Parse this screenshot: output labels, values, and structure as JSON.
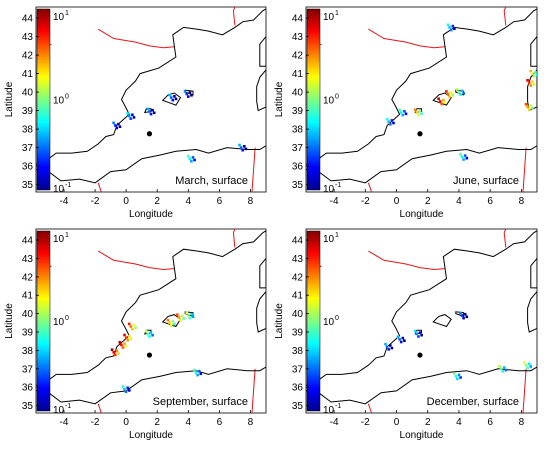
{
  "chart_data": [
    {
      "type": "heatmap",
      "title": "March, surface",
      "xlabel": "Longitude",
      "ylabel": "Latitude",
      "xlim": [
        -5.8,
        9
      ],
      "ylim": [
        34.6,
        44.6
      ],
      "xticks": [
        -4,
        -2,
        0,
        2,
        4,
        6,
        8
      ],
      "yticks": [
        35,
        36,
        37,
        38,
        39,
        40,
        41,
        42,
        43,
        44
      ],
      "colorbar": {
        "scale": "log",
        "range": [
          0.1,
          10
        ],
        "labels": [
          "10",
          "10",
          "10"
        ],
        "exponents": [
          "-1",
          "0",
          "1"
        ]
      },
      "marker": {
        "lon": 1.5,
        "lat": 37.75
      },
      "hotspots": [
        {
          "lon": 0.3,
          "lat": 38.7,
          "level": 0.35
        },
        {
          "lon": -0.6,
          "lat": 38.2,
          "level": 0.25
        },
        {
          "lon": 1.6,
          "lat": 38.95,
          "level": 0.3
        },
        {
          "lon": 3.0,
          "lat": 39.7,
          "level": 0.3
        },
        {
          "lon": 4.0,
          "lat": 39.9,
          "level": 0.25
        },
        {
          "lon": 4.2,
          "lat": 36.4,
          "level": 0.45
        },
        {
          "lon": 7.5,
          "lat": 37.0,
          "level": 0.3
        }
      ]
    },
    {
      "type": "heatmap",
      "title": "June, surface",
      "xlabel": "Longitude",
      "ylabel": "Latitude",
      "xlim": [
        -5.8,
        9
      ],
      "ylim": [
        34.6,
        44.6
      ],
      "xticks": [
        -4,
        -2,
        0,
        2,
        4,
        6,
        8
      ],
      "yticks": [
        35,
        36,
        37,
        38,
        39,
        40,
        41,
        42,
        43,
        44
      ],
      "colorbar": {
        "scale": "log",
        "range": [
          0.1,
          10
        ],
        "labels": [
          "10",
          "10",
          "10"
        ],
        "exponents": [
          "-1",
          "0",
          "1"
        ]
      },
      "marker": {
        "lon": 1.5,
        "lat": 37.75
      },
      "hotspots": [
        {
          "lon": -0.4,
          "lat": 38.4,
          "level": 0.4
        },
        {
          "lon": 0.4,
          "lat": 38.9,
          "level": 0.45
        },
        {
          "lon": 1.4,
          "lat": 38.9,
          "level": 0.75
        },
        {
          "lon": 2.9,
          "lat": 39.5,
          "level": 0.95
        },
        {
          "lon": 3.4,
          "lat": 39.9,
          "level": 0.85
        },
        {
          "lon": 4.1,
          "lat": 40.0,
          "level": 0.55
        },
        {
          "lon": 8.6,
          "lat": 40.5,
          "level": 0.9
        },
        {
          "lon": 8.5,
          "lat": 39.2,
          "level": 0.8
        },
        {
          "lon": 8.8,
          "lat": 41.0,
          "level": 0.7
        },
        {
          "lon": 3.5,
          "lat": 43.5,
          "level": 0.4
        },
        {
          "lon": 4.3,
          "lat": 36.5,
          "level": 0.45
        }
      ]
    },
    {
      "type": "heatmap",
      "title": "September, surface",
      "xlabel": "Longitude",
      "ylabel": "Latitude",
      "xlim": [
        -5.8,
        9
      ],
      "ylim": [
        34.6,
        44.6
      ],
      "xticks": [
        -4,
        -2,
        0,
        2,
        4,
        6,
        8
      ],
      "yticks": [
        35,
        36,
        37,
        38,
        39,
        40,
        41,
        42,
        43,
        44
      ],
      "colorbar": {
        "scale": "log",
        "range": [
          0.1,
          10
        ],
        "labels": [
          "10",
          "10",
          "10"
        ],
        "exponents": [
          "-1",
          "0",
          "1"
        ]
      },
      "marker": {
        "lon": 1.5,
        "lat": 37.75
      },
      "hotspots": [
        {
          "lon": -0.7,
          "lat": 37.9,
          "level": 0.98
        },
        {
          "lon": -0.2,
          "lat": 38.3,
          "level": 0.95
        },
        {
          "lon": 0.1,
          "lat": 38.7,
          "level": 0.9
        },
        {
          "lon": 0.4,
          "lat": 39.3,
          "level": 0.85
        },
        {
          "lon": 1.5,
          "lat": 38.9,
          "level": 0.55
        },
        {
          "lon": 2.9,
          "lat": 39.5,
          "level": 0.75
        },
        {
          "lon": 3.5,
          "lat": 39.8,
          "level": 0.8
        },
        {
          "lon": 4.1,
          "lat": 39.9,
          "level": 0.6
        },
        {
          "lon": 0.0,
          "lat": 35.9,
          "level": 0.4
        },
        {
          "lon": 4.6,
          "lat": 36.8,
          "level": 0.45
        }
      ]
    },
    {
      "type": "heatmap",
      "title": "December, surface",
      "xlabel": "Longitude",
      "ylabel": "Latitude",
      "xlim": [
        -5.8,
        9
      ],
      "ylim": [
        34.6,
        44.6
      ],
      "xticks": [
        -4,
        -2,
        0,
        2,
        4,
        6,
        8
      ],
      "yticks": [
        35,
        36,
        37,
        38,
        39,
        40,
        41,
        42,
        43,
        44
      ],
      "colorbar": {
        "scale": "log",
        "range": [
          0.1,
          10
        ],
        "labels": [
          "10",
          "10",
          "10"
        ],
        "exponents": [
          "-1",
          "0",
          "1"
        ]
      },
      "marker": {
        "lon": 1.5,
        "lat": 37.75
      },
      "hotspots": [
        {
          "lon": -0.5,
          "lat": 38.2,
          "level": 0.3
        },
        {
          "lon": 0.3,
          "lat": 38.6,
          "level": 0.3
        },
        {
          "lon": 1.4,
          "lat": 38.9,
          "level": 0.35
        },
        {
          "lon": 4.3,
          "lat": 39.9,
          "level": 0.25
        },
        {
          "lon": 3.9,
          "lat": 36.6,
          "level": 0.5
        },
        {
          "lon": 6.8,
          "lat": 37.0,
          "level": 0.55
        },
        {
          "lon": 8.4,
          "lat": 37.2,
          "level": 0.6
        }
      ]
    }
  ]
}
